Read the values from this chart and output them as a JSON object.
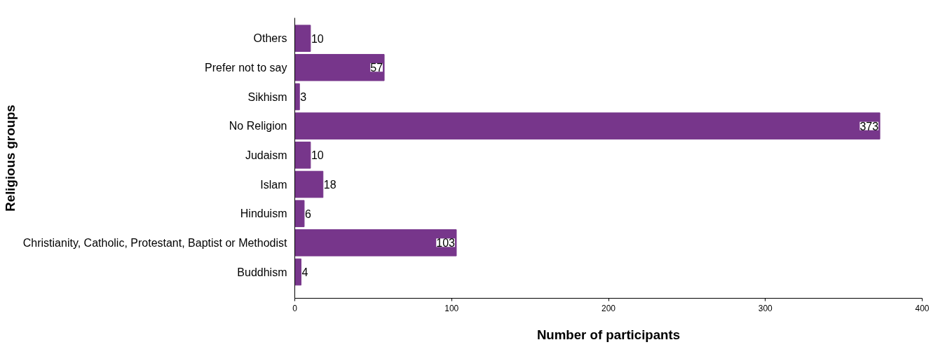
{
  "chart_data": {
    "type": "bar",
    "orientation": "horizontal",
    "categories": [
      "Others",
      "Prefer not to say",
      "Sikhism",
      "No Religion",
      "Judaism",
      "Islam",
      "Hinduism",
      "Christianity, Catholic, Protestant, Baptist or Methodist",
      "Buddhism"
    ],
    "values": [
      10,
      57,
      3,
      373,
      10,
      18,
      6,
      103,
      4
    ],
    "color": "#77368b",
    "xlim": [
      0,
      400
    ],
    "xticks": [
      0,
      100,
      200,
      300,
      400
    ],
    "xlabel": "Number of participants",
    "ylabel": "Religious groups",
    "data_labels": true,
    "grid": false
  }
}
